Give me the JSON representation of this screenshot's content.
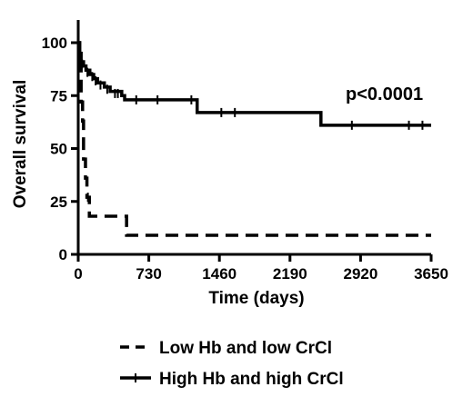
{
  "chart_data": {
    "type": "line",
    "title": "",
    "xlabel": "Time (days)",
    "ylabel": "Overall survival",
    "xlim": [
      0,
      3650
    ],
    "ylim": [
      0,
      100
    ],
    "x_ticks": [
      0,
      730,
      1460,
      2190,
      2920,
      3650
    ],
    "y_ticks": [
      0,
      25,
      50,
      75,
      100
    ],
    "grid": false,
    "legend_position": "bottom",
    "annotation": "p<0.0001",
    "series": [
      {
        "name": "Low Hb and low CrCl",
        "style": "dashed",
        "color": "#000000",
        "points": [
          [
            0,
            100
          ],
          [
            15,
            90
          ],
          [
            30,
            72
          ],
          [
            45,
            63
          ],
          [
            55,
            45
          ],
          [
            75,
            36
          ],
          [
            90,
            27
          ],
          [
            115,
            18
          ],
          [
            500,
            18
          ],
          [
            500,
            9
          ],
          [
            3650,
            9
          ]
        ],
        "censored": [
          [
            100,
            27
          ]
        ]
      },
      {
        "name": "High Hb and high CrCl",
        "style": "solid",
        "color": "#000000",
        "points": [
          [
            0,
            100
          ],
          [
            15,
            95
          ],
          [
            30,
            91
          ],
          [
            55,
            89
          ],
          [
            80,
            87
          ],
          [
            120,
            85
          ],
          [
            160,
            83
          ],
          [
            200,
            81
          ],
          [
            270,
            79
          ],
          [
            330,
            77
          ],
          [
            450,
            75
          ],
          [
            480,
            73
          ],
          [
            1230,
            73
          ],
          [
            1230,
            67
          ],
          [
            2510,
            67
          ],
          [
            2510,
            61
          ],
          [
            3650,
            61
          ]
        ],
        "censored": [
          [
            40,
            90
          ],
          [
            95,
            86
          ],
          [
            145,
            84
          ],
          [
            180,
            82
          ],
          [
            230,
            80
          ],
          [
            300,
            78
          ],
          [
            380,
            76
          ],
          [
            410,
            76
          ],
          [
            600,
            73
          ],
          [
            820,
            73
          ],
          [
            1170,
            73
          ],
          [
            1480,
            67
          ],
          [
            1620,
            67
          ],
          [
            2830,
            61
          ],
          [
            3420,
            61
          ],
          [
            3560,
            61
          ]
        ]
      }
    ]
  }
}
